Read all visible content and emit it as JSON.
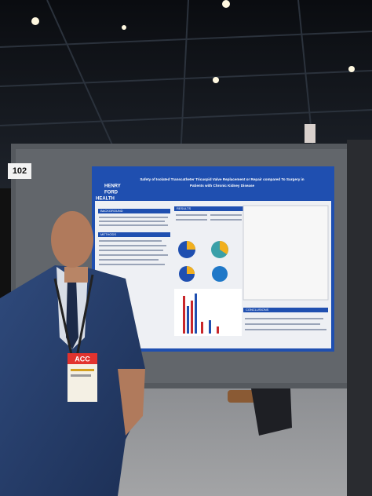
{
  "sign_number": "102",
  "poster": {
    "logo": [
      "HENRY",
      "FORD",
      "HEALTH"
    ],
    "title_lines": [
      "Safety of Isolated Transcatheter Tricuspid Valve Replacement or Repair compared To Surgery in",
      "Patients with Chronic Kidney Disease"
    ],
    "sections": {
      "background": "BACKGROUND",
      "methods": "METHODS",
      "results": "RESULTS",
      "conclusions": "CONCLUSIONS"
    }
  },
  "badge": "ACC"
}
